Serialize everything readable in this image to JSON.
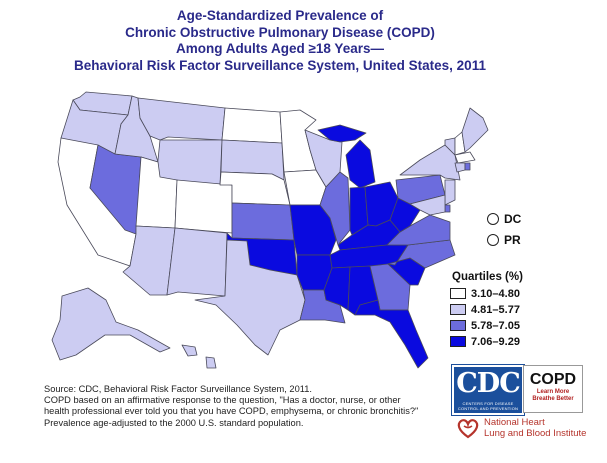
{
  "title_lines": [
    "Age-Standardized Prevalence of",
    "Chronic Obstructive Pulmonary Disease (COPD)",
    "Among Adults Aged ≥18 Years—",
    "Behavioral Risk Factor Surveillance System, United States, 2011"
  ],
  "legend": {
    "title": "Quartiles (%)",
    "items": [
      {
        "label": "3.10–4.80",
        "color": "#ffffff"
      },
      {
        "label": "4.81–5.77",
        "color": "#ccccf2"
      },
      {
        "label": "5.78–7.05",
        "color": "#6c6cdd"
      },
      {
        "label": "7.06–9.29",
        "color": "#0a0adf"
      }
    ]
  },
  "markers": {
    "dc": "DC",
    "pr": "PR"
  },
  "source_lines": [
    "Source: CDC, Behavioral Risk Factor Surveillance System, 2011.",
    "COPD based on an affirmative response to the question, \"Has a doctor, nurse, or other",
    "health professional ever told you that you have COPD, emphysema, or chronic bronchitis?\"",
    "Prevalence age-adjusted to the 2000 U.S. standard population."
  ],
  "logos": {
    "cdc": "CDC",
    "cdc_small": "CENTERS FOR DISEASE CONTROL AND PREVENTION",
    "copd": "COPD",
    "copd_tag_1": "Learn More",
    "copd_tag_2": "Breathe Better",
    "nhlbi_1": "National Heart",
    "nhlbi_2": "Lung and Blood Institute"
  },
  "outline_color": "#4a4a5a"
}
